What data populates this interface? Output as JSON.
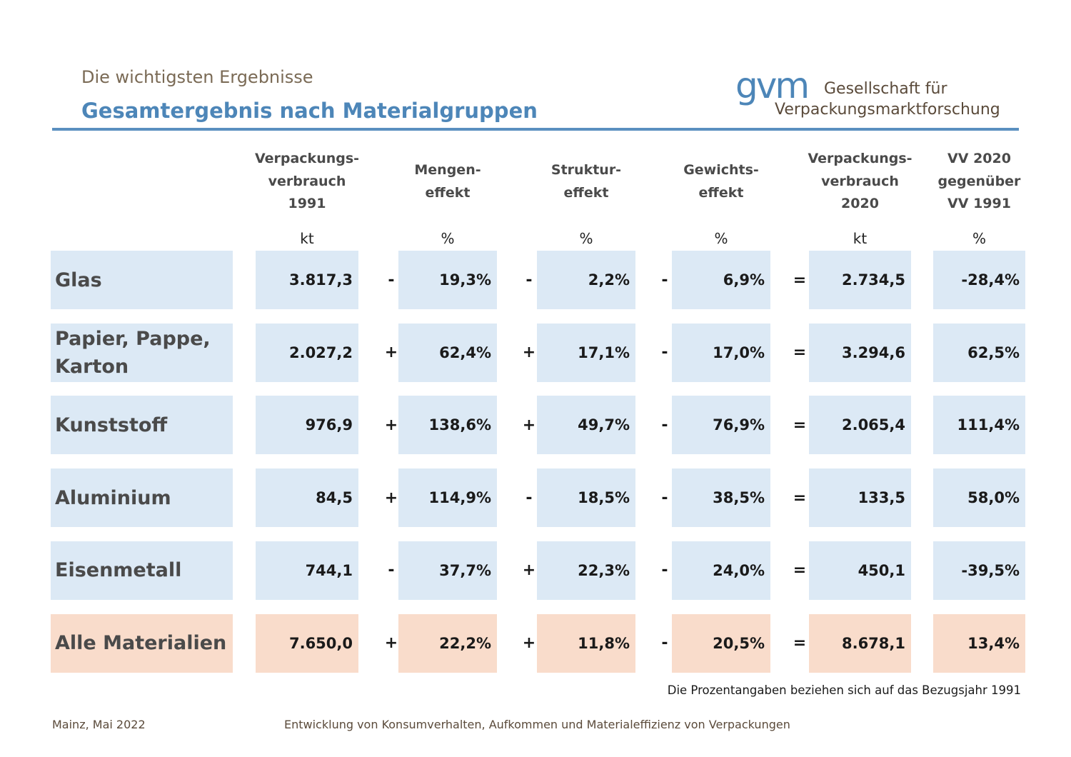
{
  "header": {
    "subtitle": "Die wichtigsten Ergebnisse",
    "title": "Gesamtergebnis nach Materialgruppen"
  },
  "logo": {
    "mark": "gvm",
    "line1": "Gesellschaft für",
    "line2": "Verpackungsmarktforschung"
  },
  "columns": [
    {
      "lines": [
        "Verpackungs-",
        "verbrauch",
        "1991"
      ],
      "unit": "kt"
    },
    {
      "lines": [
        "Mengen-",
        "effekt"
      ],
      "unit": "%"
    },
    {
      "lines": [
        "Struktur-",
        "effekt"
      ],
      "unit": "%"
    },
    {
      "lines": [
        "Gewichts-",
        "effekt"
      ],
      "unit": "%"
    },
    {
      "lines": [
        "Verpackungs-",
        "verbrauch",
        "2020"
      ],
      "unit": "kt"
    },
    {
      "lines": [
        "VV 2020",
        "gegenüber",
        "VV 1991"
      ],
      "unit": "%"
    }
  ],
  "rows": [
    {
      "label": "Glas",
      "v1991": "3.817,3",
      "op1": "-",
      "mengen": "19,3%",
      "op2": "-",
      "struktur": "2,2%",
      "op3": "-",
      "gewicht": "6,9%",
      "eq": "=",
      "v2020": "2.734,5",
      "change": "-28,4%"
    },
    {
      "label": "Papier, Pappe, Karton",
      "v1991": "2.027,2",
      "op1": "+",
      "mengen": "62,4%",
      "op2": "+",
      "struktur": "17,1%",
      "op3": "-",
      "gewicht": "17,0%",
      "eq": "=",
      "v2020": "3.294,6",
      "change": "62,5%"
    },
    {
      "label": "Kunststoff",
      "v1991": "976,9",
      "op1": "+",
      "mengen": "138,6%",
      "op2": "+",
      "struktur": "49,7%",
      "op3": "-",
      "gewicht": "76,9%",
      "eq": "=",
      "v2020": "2.065,4",
      "change": "111,4%"
    },
    {
      "label": "Aluminium",
      "v1991": "84,5",
      "op1": "+",
      "mengen": "114,9%",
      "op2": "-",
      "struktur": "18,5%",
      "op3": "-",
      "gewicht": "38,5%",
      "eq": "=",
      "v2020": "133,5",
      "change": "58,0%"
    },
    {
      "label": "Eisenmetall",
      "v1991": "744,1",
      "op1": "-",
      "mengen": "37,7%",
      "op2": "+",
      "struktur": "22,3%",
      "op3": "-",
      "gewicht": "24,0%",
      "eq": "=",
      "v2020": "450,1",
      "change": "-39,5%"
    },
    {
      "label": "Alle Materialien",
      "v1991": "7.650,0",
      "op1": "+",
      "mengen": "22,2%",
      "op2": "+",
      "struktur": "11,8%",
      "op3": "-",
      "gewicht": "20,5%",
      "eq": "=",
      "v2020": "8.678,1",
      "change": "13,4%",
      "highlight": true
    }
  ],
  "note": "Die Prozentangaben beziehen sich auf das Bezugsjahr 1991",
  "footer": {
    "left": "Mainz, Mai 2022",
    "center": "Entwicklung von Konsumverhalten, Aufkommen und Materialeffizienz von Verpackungen"
  },
  "colors": {
    "accent": "#4d86b8",
    "row_fill": "#dce9f5",
    "total_fill": "#f9dccb"
  }
}
